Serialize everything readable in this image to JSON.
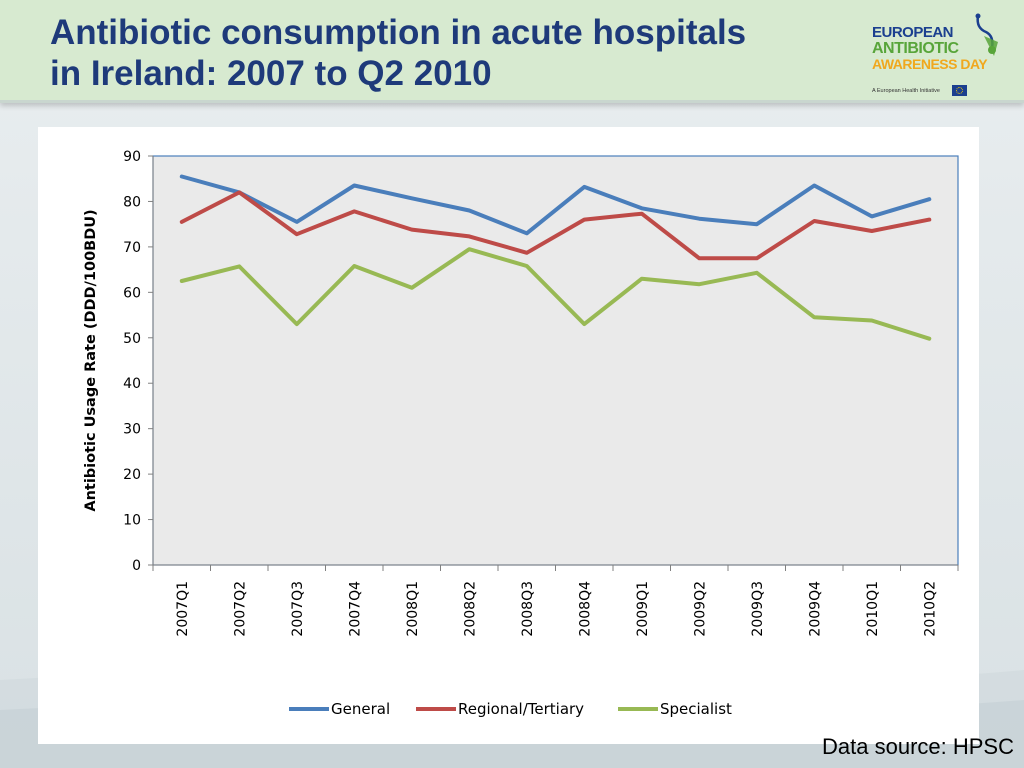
{
  "slide": {
    "title_line1": "Antibiotic consumption in acute hospitals",
    "title_line2": "in Ireland: 2007 to Q2 2010",
    "source": "Data source: HPSC"
  },
  "logo": {
    "line1": "EUROPEAN",
    "line2": "ANTIBIOTIC",
    "line3": "AWARENESS DAY",
    "tagline": "A European Health Initiative"
  },
  "colors": {
    "title": "#1e3a7a",
    "general": "#4a7ebb",
    "regional": "#be4b48",
    "specialist": "#98b954",
    "plot_bg": "#eaeaea",
    "plot_border": "#4a7ebb"
  },
  "chart_data": {
    "type": "line",
    "title": "",
    "xlabel": "",
    "ylabel": "Antibiotic Usage Rate (DDD/100BDU)",
    "ylim": [
      0,
      90
    ],
    "yticks": [
      0,
      10,
      20,
      30,
      40,
      50,
      60,
      70,
      80,
      90
    ],
    "grid": false,
    "legend": "bottom",
    "categories": [
      "2007Q1",
      "2007Q2",
      "2007Q3",
      "2007Q4",
      "2008Q1",
      "2008Q2",
      "2008Q3",
      "2008Q4",
      "2009Q1",
      "2009Q2",
      "2009Q3",
      "2009Q4",
      "2010Q1",
      "2010Q2"
    ],
    "series": [
      {
        "name": "General",
        "color": "#4a7ebb",
        "values": [
          85.5,
          82,
          75.5,
          83.5,
          80.7,
          78,
          73,
          83.2,
          78.5,
          76.2,
          75,
          83.5,
          76.7,
          80.5
        ]
      },
      {
        "name": "Regional/Tertiary",
        "color": "#be4b48",
        "values": [
          75.5,
          82,
          72.8,
          77.8,
          73.8,
          72.3,
          68.7,
          76,
          77.3,
          67.5,
          67.5,
          75.7,
          73.5,
          76
        ]
      },
      {
        "name": "Specialist",
        "color": "#98b954",
        "values": [
          62.5,
          65.7,
          53,
          65.8,
          61,
          69.5,
          65.8,
          53,
          63,
          61.8,
          64.3,
          54.5,
          53.8,
          49.8
        ]
      }
    ]
  }
}
